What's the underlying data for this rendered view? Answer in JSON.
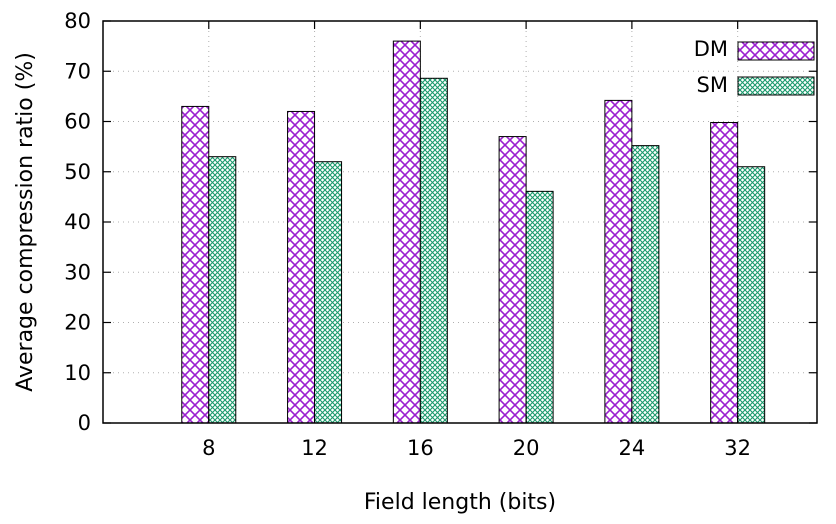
{
  "chart_data": {
    "type": "bar",
    "title": "",
    "xlabel": "Field length (bits)",
    "ylabel": "Average compression ratio (%)",
    "categories": [
      "8",
      "12",
      "16",
      "20",
      "24",
      "32"
    ],
    "series": [
      {
        "name": "DM",
        "values": [
          63,
          62,
          76,
          57,
          64.2,
          59.8
        ],
        "color": "#9b1fd0",
        "pattern": "crosshatch"
      },
      {
        "name": "SM",
        "values": [
          53,
          52,
          68.6,
          46.1,
          55.2,
          51
        ],
        "color": "#1a9a6c",
        "pattern": "fine-crosshatch"
      }
    ],
    "ylim": [
      0,
      80
    ],
    "yticks": [
      "0",
      "10",
      "20",
      "30",
      "40",
      "50",
      "60",
      "70",
      "80"
    ],
    "grid": true,
    "legend_position": "top-right"
  }
}
